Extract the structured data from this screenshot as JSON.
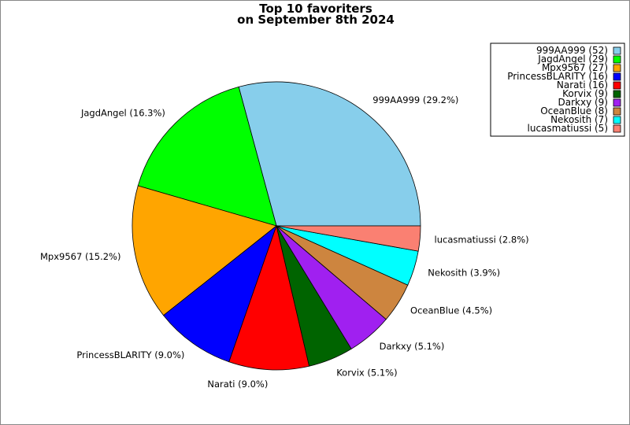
{
  "chart_data": {
    "type": "pie",
    "title": [
      "Top 10 favoriters",
      "on September 8th 2024"
    ],
    "start_angle_deg": 0,
    "direction": "counterclockwise",
    "legend_position": "top-right",
    "slices": [
      {
        "name": "999AA999",
        "value": 52,
        "percent": "29.2%",
        "color": "#87ceeb"
      },
      {
        "name": "JagdAngel",
        "value": 29,
        "percent": "16.3%",
        "color": "#00ff00"
      },
      {
        "name": "Mpx9567",
        "value": 27,
        "percent": "15.2%",
        "color": "#ffa500"
      },
      {
        "name": "PrincessBLARITY",
        "value": 16,
        "percent": "9.0%",
        "color": "#0000ff"
      },
      {
        "name": "Narati",
        "value": 16,
        "percent": "9.0%",
        "color": "#ff0000"
      },
      {
        "name": "Korvix",
        "value": 9,
        "percent": "5.1%",
        "color": "#006400"
      },
      {
        "name": "Darkxy",
        "value": 9,
        "percent": "5.1%",
        "color": "#a020f0"
      },
      {
        "name": "OceanBlue",
        "value": 8,
        "percent": "4.5%",
        "color": "#cd853f"
      },
      {
        "name": "Nekosith",
        "value": 7,
        "percent": "3.9%",
        "color": "#00ffff"
      },
      {
        "name": "lucasmatiussi",
        "value": 5,
        "percent": "2.8%",
        "color": "#fa8072"
      }
    ]
  }
}
